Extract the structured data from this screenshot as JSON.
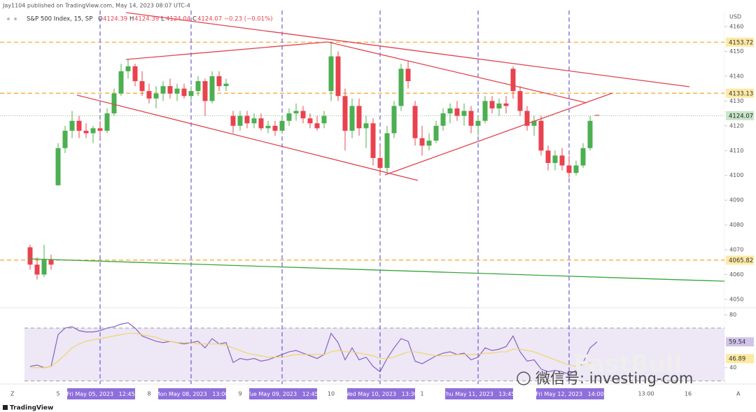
{
  "header": {
    "published": "Jay1104 published on TradingView.com, May 14, 2023 08:07 UTC-4"
  },
  "legend": {
    "name": "S&P 500 Index, 15, SP",
    "fields": [
      "O",
      "H",
      "L",
      "C"
    ],
    "change": "−0.23 (−0.01%)"
  },
  "corners": [
    "Z",
    "A"
  ],
  "footer": {
    "brand": "TradingView"
  },
  "watermark": {
    "brand": "FastBull",
    "account": "微信号: investing-com"
  },
  "chart_data": [
    {
      "type": "candlestick",
      "currency": "USD",
      "up_color": "#4caf50",
      "down_color": "#e8434f",
      "xlim": [
        -4.3,
        99.2
      ],
      "ylim": [
        4046.6,
        4166.5
      ],
      "yticks": [
        4050,
        4060,
        4070,
        4080,
        4090,
        4100,
        4110,
        4120,
        4130,
        4140,
        4150,
        4160
      ],
      "levels": [
        4153.72,
        4133.13,
        4065.82
      ],
      "level_color": "#f5a623",
      "xticks": [
        {
          "value": 4,
          "label": "5"
        },
        {
          "value": 17,
          "label": "8"
        },
        {
          "value": 30,
          "label": "9"
        },
        {
          "value": 43,
          "label": "10"
        },
        {
          "value": 56,
          "label": "1"
        },
        {
          "value": 88,
          "label": "13:00"
        },
        {
          "value": 94,
          "label": "16"
        }
      ],
      "markers": [
        {
          "value": 10,
          "label": "Fri May 05, 2023   12:45"
        },
        {
          "value": 23,
          "label": "Mon May 08, 2023   13:00"
        },
        {
          "value": 36,
          "label": "Tue May 09, 2023   12:45"
        },
        {
          "value": 50,
          "label": "Wed May 10, 2023   13:30"
        },
        {
          "value": 64,
          "label": "Thu May 11, 2023   13:45"
        },
        {
          "value": 77,
          "label": "Fri May 12, 2023   14:00"
        }
      ],
      "marker_color": "#5b4fd6",
      "candles": [
        [
          4071,
          4072,
          4062,
          4064
        ],
        [
          4064,
          4067,
          4058,
          4060
        ],
        [
          4060,
          4072,
          4059,
          4066
        ],
        [
          4066,
          4068,
          4062,
          4064
        ],
        [
          4096,
          4113,
          4096,
          4111
        ],
        [
          4111,
          4120,
          4109,
          4118
        ],
        [
          4118,
          4126,
          4115,
          4122
        ],
        [
          4122,
          4124,
          4115,
          4118
        ],
        [
          4118,
          4121,
          4115,
          4117
        ],
        [
          4117,
          4120,
          4113,
          4119
        ],
        [
          4119,
          4122,
          4115,
          4118
        ],
        [
          4118,
          4127,
          4117,
          4125
        ],
        [
          4125,
          4135,
          4124,
          4133
        ],
        [
          4133,
          4145,
          4132,
          4142
        ],
        [
          4142,
          4147,
          4139,
          4144
        ],
        [
          4144,
          4145,
          4136,
          4138
        ],
        [
          4138,
          4142,
          4132,
          4134
        ],
        [
          4134,
          4137,
          4129,
          4131
        ],
        [
          4131,
          4136,
          4127,
          4133
        ],
        [
          4133,
          4138,
          4130,
          4136
        ],
        [
          4136,
          4139,
          4131,
          4133
        ],
        [
          4133,
          4137,
          4130,
          4135
        ],
        [
          4135,
          4137,
          4131,
          4132
        ],
        [
          4132,
          4136,
          4130,
          4134
        ],
        [
          4134,
          4140,
          4132,
          4138
        ],
        [
          4138,
          4139,
          4124,
          4130
        ],
        [
          4130,
          4142,
          4129,
          4140
        ],
        [
          4140,
          4142,
          4134,
          4136
        ],
        [
          4136,
          4139,
          4134,
          4137
        ],
        [
          4124,
          4126,
          4117,
          4120
        ],
        [
          4120,
          4126,
          4118,
          4124
        ],
        [
          4124,
          4126,
          4119,
          4121
        ],
        [
          4121,
          4125,
          4119,
          4123
        ],
        [
          4123,
          4125,
          4118,
          4119
        ],
        [
          4119,
          4122,
          4117,
          4120
        ],
        [
          4120,
          4122,
          4116,
          4118
        ],
        [
          4118,
          4124,
          4117,
          4122
        ],
        [
          4122,
          4127,
          4120,
          4125
        ],
        [
          4125,
          4129,
          4122,
          4126
        ],
        [
          4126,
          4128,
          4121,
          4123
        ],
        [
          4123,
          4125,
          4119,
          4121
        ],
        [
          4121,
          4124,
          4118,
          4119
        ],
        [
          4121,
          4126,
          4119,
          4124
        ],
        [
          4134,
          4154,
          4130,
          4148
        ],
        [
          4148,
          4150,
          4130,
          4132
        ],
        [
          4132,
          4135,
          4110,
          4118
        ],
        [
          4118,
          4131,
          4115,
          4128
        ],
        [
          4128,
          4131,
          4116,
          4119
        ],
        [
          4119,
          4124,
          4111,
          4121
        ],
        [
          4121,
          4123,
          4104,
          4107
        ],
        [
          4107,
          4112,
          4100,
          4103
        ],
        [
          4103,
          4120,
          4101,
          4117
        ],
        [
          4117,
          4130,
          4115,
          4128
        ],
        [
          4128,
          4145,
          4126,
          4143
        ],
        [
          4143,
          4146,
          4135,
          4138
        ],
        [
          4128,
          4130,
          4112,
          4115
        ],
        [
          4115,
          4120,
          4108,
          4112
        ],
        [
          4112,
          4117,
          4110,
          4114
        ],
        [
          4114,
          4122,
          4113,
          4120
        ],
        [
          4120,
          4127,
          4118,
          4125
        ],
        [
          4125,
          4129,
          4121,
          4127
        ],
        [
          4127,
          4130,
          4122,
          4124
        ],
        [
          4124,
          4129,
          4120,
          4126
        ],
        [
          4126,
          4128,
          4117,
          4120
        ],
        [
          4120,
          4124,
          4116,
          4122
        ],
        [
          4122,
          4132,
          4121,
          4130
        ],
        [
          4130,
          4132,
          4125,
          4127
        ],
        [
          4127,
          4131,
          4124,
          4129
        ],
        [
          4129,
          4132,
          4125,
          4128
        ],
        [
          4143,
          4144,
          4131,
          4134
        ],
        [
          4134,
          4136,
          4124,
          4126
        ],
        [
          4126,
          4128,
          4118,
          4120
        ],
        [
          4120,
          4124,
          4116,
          4122
        ],
        [
          4122,
          4124,
          4108,
          4110
        ],
        [
          4110,
          4112,
          4102,
          4105
        ],
        [
          4105,
          4110,
          4102,
          4108
        ],
        [
          4108,
          4111,
          4102,
          4104
        ],
        [
          4104,
          4108,
          4099,
          4101
        ],
        [
          4101,
          4106,
          4100,
          4104
        ],
        [
          4104,
          4113,
          4103,
          4111
        ],
        [
          4111,
          4124,
          4110,
          4122
        ],
        [
          4124.39,
          4124.39,
          4124.04,
          4124.07
        ]
      ]
    },
    {
      "type": "line",
      "xlim": [
        -4.3,
        99.2
      ],
      "ylim": [
        27.7,
        85.3
      ],
      "yticks": [
        40,
        80
      ],
      "bands": [
        30,
        70
      ],
      "band_color": "#ede7f6",
      "series": [
        {
          "color": "#7e57c2",
          "label_color": "#d1c4e9",
          "values": [
            41,
            42,
            40,
            41,
            65,
            70,
            71,
            68,
            67,
            67,
            68,
            70,
            71,
            73,
            74,
            70,
            64,
            62,
            60,
            59,
            60,
            59,
            58,
            59,
            60,
            55,
            62,
            58,
            59,
            44,
            47,
            46,
            47,
            45,
            46,
            48,
            50,
            52,
            53,
            51,
            49,
            47,
            50,
            66,
            59,
            46,
            55,
            46,
            48,
            41,
            37,
            47,
            55,
            62,
            60,
            45,
            43,
            46,
            49,
            51,
            52,
            50,
            51,
            46,
            48,
            55,
            53,
            54,
            56,
            64,
            52,
            45,
            46,
            39,
            37,
            38,
            37,
            35,
            38,
            44,
            55,
            59.54
          ]
        },
        {
          "color": "#f2d45c",
          "label_color": "#fbeaa0",
          "values": [
            40,
            40,
            40,
            41,
            45,
            50,
            55,
            58,
            60,
            61,
            62,
            63,
            64,
            65,
            66,
            66,
            65,
            64,
            63,
            61,
            60,
            59,
            59,
            59,
            58,
            58,
            58,
            58,
            57,
            55,
            53,
            51,
            50,
            49,
            48,
            48,
            48,
            49,
            50,
            50,
            50,
            50,
            50,
            52,
            53,
            52,
            52,
            51,
            50,
            49,
            47,
            47,
            48,
            50,
            52,
            52,
            51,
            50,
            49,
            49,
            49,
            50,
            50,
            50,
            50,
            51,
            51,
            52,
            52,
            54,
            54,
            53,
            52,
            50,
            48,
            46,
            44,
            42,
            41,
            42,
            44,
            46.89
          ]
        }
      ]
    }
  ]
}
